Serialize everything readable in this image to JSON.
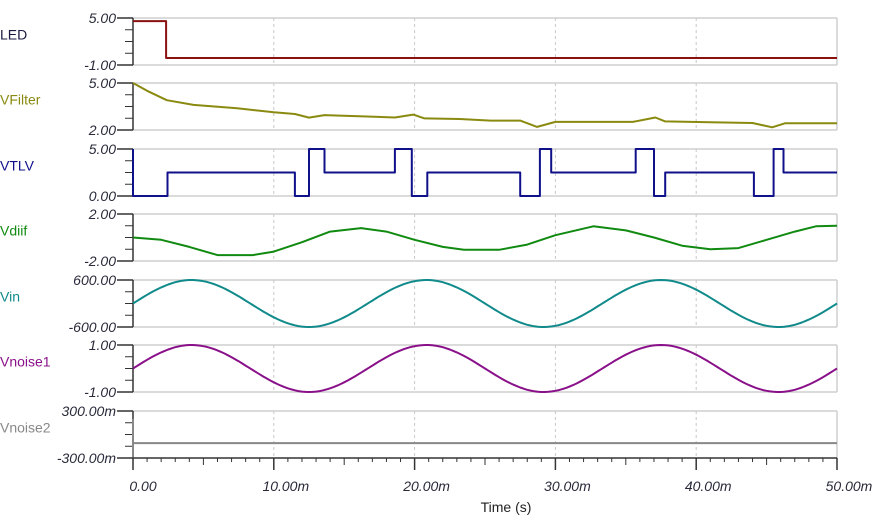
{
  "chart_data": {
    "type": "line",
    "title": "",
    "xlabel": "Time (s)",
    "xlim": [
      0,
      50
    ],
    "x_unit_scale": "ms",
    "x_ticks": [
      0,
      10,
      20,
      30,
      40,
      50
    ],
    "x_tick_labels": [
      "0.00",
      "10.00m",
      "20.00m",
      "30.00m",
      "40.00m",
      "50.00m"
    ],
    "grid": "vertical dashed at major ticks",
    "series": [
      {
        "name": "LED",
        "color": "#8b1010",
        "label_color": "#1a1a40",
        "ylim": [
          -1,
          5
        ],
        "ytick_labels": [
          "5.00",
          "-1.00"
        ],
        "step": true,
        "points": [
          [
            0,
            4.6
          ],
          [
            2.35,
            4.6
          ],
          [
            2.35,
            -0.1
          ],
          [
            50,
            -0.1
          ]
        ]
      },
      {
        "name": "VFilter",
        "color": "#8a8a10",
        "ylim": [
          2,
          5
        ],
        "ytick_labels": [
          "5.00",
          "2.00"
        ],
        "points": [
          [
            0,
            5.0
          ],
          [
            1,
            4.5
          ],
          [
            2.4,
            3.9
          ],
          [
            4.3,
            3.6
          ],
          [
            7.4,
            3.39
          ],
          [
            10,
            3.13
          ],
          [
            11.5,
            3.02
          ],
          [
            12.5,
            2.79
          ],
          [
            13.6,
            2.95
          ],
          [
            18.6,
            2.8
          ],
          [
            19.9,
            2.98
          ],
          [
            20.7,
            2.74
          ],
          [
            23.2,
            2.7
          ],
          [
            25.4,
            2.6
          ],
          [
            27.5,
            2.6
          ],
          [
            28.7,
            2.2
          ],
          [
            30,
            2.52
          ],
          [
            35.5,
            2.52
          ],
          [
            37.1,
            2.8
          ],
          [
            37.8,
            2.55
          ],
          [
            41,
            2.5
          ],
          [
            44,
            2.45
          ],
          [
            45.4,
            2.17
          ],
          [
            46.3,
            2.43
          ],
          [
            50,
            2.43
          ]
        ]
      },
      {
        "name": "VTLV",
        "color": "#10108a",
        "ylim": [
          0,
          5
        ],
        "ytick_labels": [
          "5.00",
          "0.00"
        ],
        "step": true,
        "points": [
          [
            0,
            5
          ],
          [
            0,
            0
          ],
          [
            2.45,
            0
          ],
          [
            2.45,
            2.5
          ],
          [
            11.5,
            2.5
          ],
          [
            11.5,
            0
          ],
          [
            12.5,
            0
          ],
          [
            12.5,
            5
          ],
          [
            13.6,
            5
          ],
          [
            13.6,
            2.5
          ],
          [
            18.6,
            2.5
          ],
          [
            18.6,
            5
          ],
          [
            19.8,
            5
          ],
          [
            19.8,
            0
          ],
          [
            20.9,
            0
          ],
          [
            20.9,
            2.5
          ],
          [
            27.5,
            2.5
          ],
          [
            27.5,
            0
          ],
          [
            28.9,
            0
          ],
          [
            28.9,
            5
          ],
          [
            29.7,
            5
          ],
          [
            29.7,
            2.5
          ],
          [
            35.7,
            2.5
          ],
          [
            35.7,
            5
          ],
          [
            37.0,
            5
          ],
          [
            37.0,
            0
          ],
          [
            37.8,
            0
          ],
          [
            37.8,
            2.5
          ],
          [
            44.1,
            2.5
          ],
          [
            44.1,
            0
          ],
          [
            45.5,
            0
          ],
          [
            45.5,
            5
          ],
          [
            46.2,
            5
          ],
          [
            46.2,
            2.5
          ],
          [
            50,
            2.5
          ]
        ]
      },
      {
        "name": "Vdiif",
        "color": "#108a10",
        "ylim": [
          -2,
          2
        ],
        "ytick_labels": [
          "2.00",
          "-2.00"
        ],
        "points": [
          [
            0,
            0
          ],
          [
            2,
            -0.2
          ],
          [
            4,
            -0.8
          ],
          [
            6,
            -1.5
          ],
          [
            8.5,
            -1.5
          ],
          [
            10,
            -1.2
          ],
          [
            12,
            -0.4
          ],
          [
            14,
            0.5
          ],
          [
            16.2,
            0.8
          ],
          [
            18,
            0.5
          ],
          [
            20,
            -0.2
          ],
          [
            22,
            -0.8
          ],
          [
            23.5,
            -1.05
          ],
          [
            26,
            -1.05
          ],
          [
            28,
            -0.6
          ],
          [
            30,
            0.2
          ],
          [
            32.7,
            0.95
          ],
          [
            35,
            0.6
          ],
          [
            37,
            0
          ],
          [
            39,
            -0.7
          ],
          [
            41,
            -1.0
          ],
          [
            43,
            -0.9
          ],
          [
            45,
            -0.2
          ],
          [
            47,
            0.5
          ],
          [
            48.5,
            0.95
          ],
          [
            50,
            1.0
          ]
        ]
      },
      {
        "name": "Vin",
        "color": "#108a8a",
        "ylim": [
          -600,
          600
        ],
        "ytick_labels": [
          "600.00",
          "-600.00"
        ],
        "sine": {
          "amplitude": 600,
          "frequency_hz": 60,
          "offset": 0
        }
      },
      {
        "name": "Vnoise1",
        "color": "#8a108a",
        "ylim": [
          -1,
          1
        ],
        "ytick_labels": [
          "1.00",
          "-1.00"
        ],
        "sine": {
          "amplitude": 1,
          "frequency_hz": 60,
          "offset": 0
        }
      },
      {
        "name": "Vnoise2",
        "color": "#888888",
        "ylim": [
          -0.3,
          0.3
        ],
        "ytick_labels": [
          "300.00m",
          "-300.00m"
        ],
        "points": [
          [
            0,
            0.2
          ],
          [
            0,
            -0.28
          ],
          [
            0,
            -0.11
          ],
          [
            50,
            -0.11
          ]
        ]
      }
    ]
  }
}
